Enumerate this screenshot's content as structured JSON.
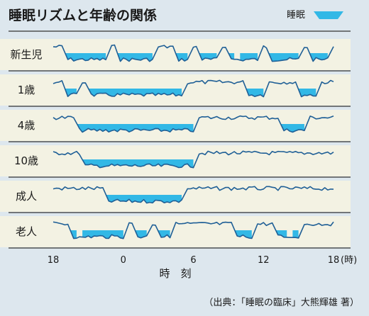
{
  "title": "睡眠リズムと年齢の関係",
  "legend": {
    "label": "睡眠",
    "color": "#32b8e6"
  },
  "source": "（出典：「睡眠の臨床」大熊輝雄 著）",
  "chart_data": {
    "type": "area",
    "title": "睡眠リズムと年齢の関係",
    "xlabel": "時　刻",
    "ylabel": "",
    "x_ticks": [
      "18",
      "0",
      "6",
      "12",
      "18"
    ],
    "x_unit": "(時)",
    "x_range": [
      "18",
      "18"
    ],
    "legend_position": "top-right",
    "grid": false,
    "series": [
      {
        "name": "新生児",
        "sleep_periods": [
          [
            "19:00",
            "22:30"
          ],
          [
            "23:30",
            "2:30"
          ],
          [
            "4:30",
            "5:30"
          ],
          [
            "6:30",
            "8:00"
          ],
          [
            "9:00",
            "9:30"
          ],
          [
            "10:00",
            "11:30"
          ],
          [
            "12:30",
            "15:00"
          ],
          [
            "16:00",
            "17:30"
          ]
        ]
      },
      {
        "name": "1歳",
        "sleep_periods": [
          [
            "19:00",
            "20:00"
          ],
          [
            "21:00",
            "5:00"
          ],
          [
            "10:30",
            "12:00"
          ],
          [
            "15:00",
            "16:30"
          ]
        ]
      },
      {
        "name": "4歳",
        "sleep_periods": [
          [
            "20:00",
            "6:00"
          ],
          [
            "13:30",
            "15:30"
          ]
        ]
      },
      {
        "name": "10歳",
        "sleep_periods": [
          [
            "20:30",
            "6:00"
          ]
        ]
      },
      {
        "name": "成人",
        "sleep_periods": [
          [
            "22:30",
            "5:00"
          ]
        ]
      },
      {
        "name": "老人",
        "sleep_periods": [
          [
            "19:30",
            "20:00"
          ],
          [
            "20:30",
            "0:00"
          ],
          [
            "1:00",
            "2:00"
          ],
          [
            "3:00",
            "4:00"
          ],
          [
            "9:30",
            "11:00"
          ],
          [
            "13:00",
            "14:00"
          ],
          [
            "14:30",
            "15:00"
          ]
        ]
      }
    ]
  }
}
